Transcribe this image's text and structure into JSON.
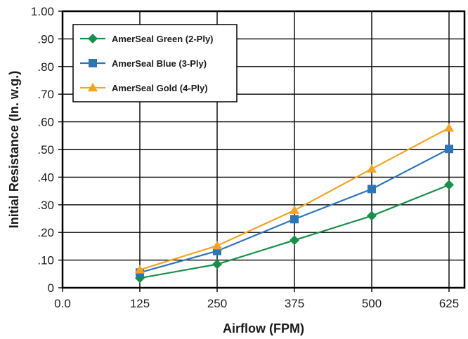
{
  "chart_data": {
    "type": "line",
    "title": "",
    "xlabel": "Airflow (FPM)",
    "ylabel": "Initial Resistance (In. w.g.)",
    "x": [
      125,
      250,
      375,
      500,
      625
    ],
    "xlim": [
      0,
      650
    ],
    "ylim": [
      0,
      1.0
    ],
    "x_tick_values": [
      0,
      125,
      250,
      375,
      500,
      625
    ],
    "x_tick_labels": [
      "0.0",
      "125",
      "250",
      "375",
      "500",
      "625"
    ],
    "y_tick_values": [
      0,
      0.1,
      0.2,
      0.3,
      0.4,
      0.5,
      0.6,
      0.7,
      0.8,
      0.9,
      1.0
    ],
    "y_tick_labels": [
      "0",
      ".10",
      ".20",
      ".30",
      ".40",
      ".50",
      ".60",
      ".70",
      ".80",
      ".90",
      "1.00"
    ],
    "grid": true,
    "legend_position": "top-left",
    "series": [
      {
        "name": "AmerSeal Green (2-Ply)",
        "color": "#1a8f4a",
        "marker": "diamond",
        "values": [
          0.035,
          0.085,
          0.172,
          0.26,
          0.372
        ]
      },
      {
        "name": "AmerSeal Blue (3-Ply)",
        "color": "#2e75b6",
        "marker": "square",
        "values": [
          0.055,
          0.133,
          0.248,
          0.357,
          0.502
        ]
      },
      {
        "name": "AmerSeal Gold (4-Ply)",
        "color": "#f5a323",
        "marker": "triangle",
        "values": [
          0.065,
          0.152,
          0.28,
          0.43,
          0.578
        ]
      }
    ]
  }
}
